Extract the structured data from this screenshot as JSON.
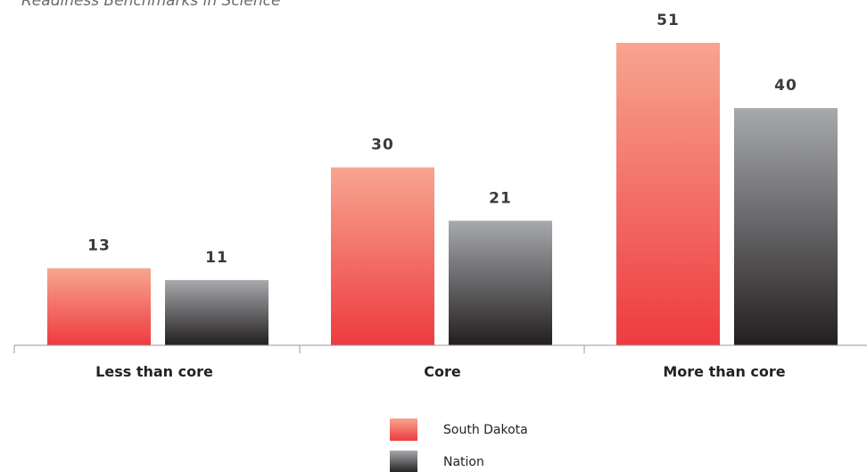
{
  "chart_data": {
    "type": "bar",
    "title": "Readiness Benchmarks in Science",
    "xlabel": "",
    "ylabel": "",
    "categories": [
      "Less than core",
      "Core",
      "More than core"
    ],
    "series": [
      {
        "name": "South Dakota",
        "values": [
          13,
          30,
          51
        ],
        "color_top": "#f7a58f",
        "color_bottom": "#ee3b3f"
      },
      {
        "name": "Nation",
        "values": [
          11,
          21,
          40
        ],
        "color_top": "#a7a9ac",
        "color_bottom": "#231f20"
      }
    ],
    "ylim": [
      0,
      51
    ],
    "grid": false,
    "legend_position": "bottom-center"
  }
}
